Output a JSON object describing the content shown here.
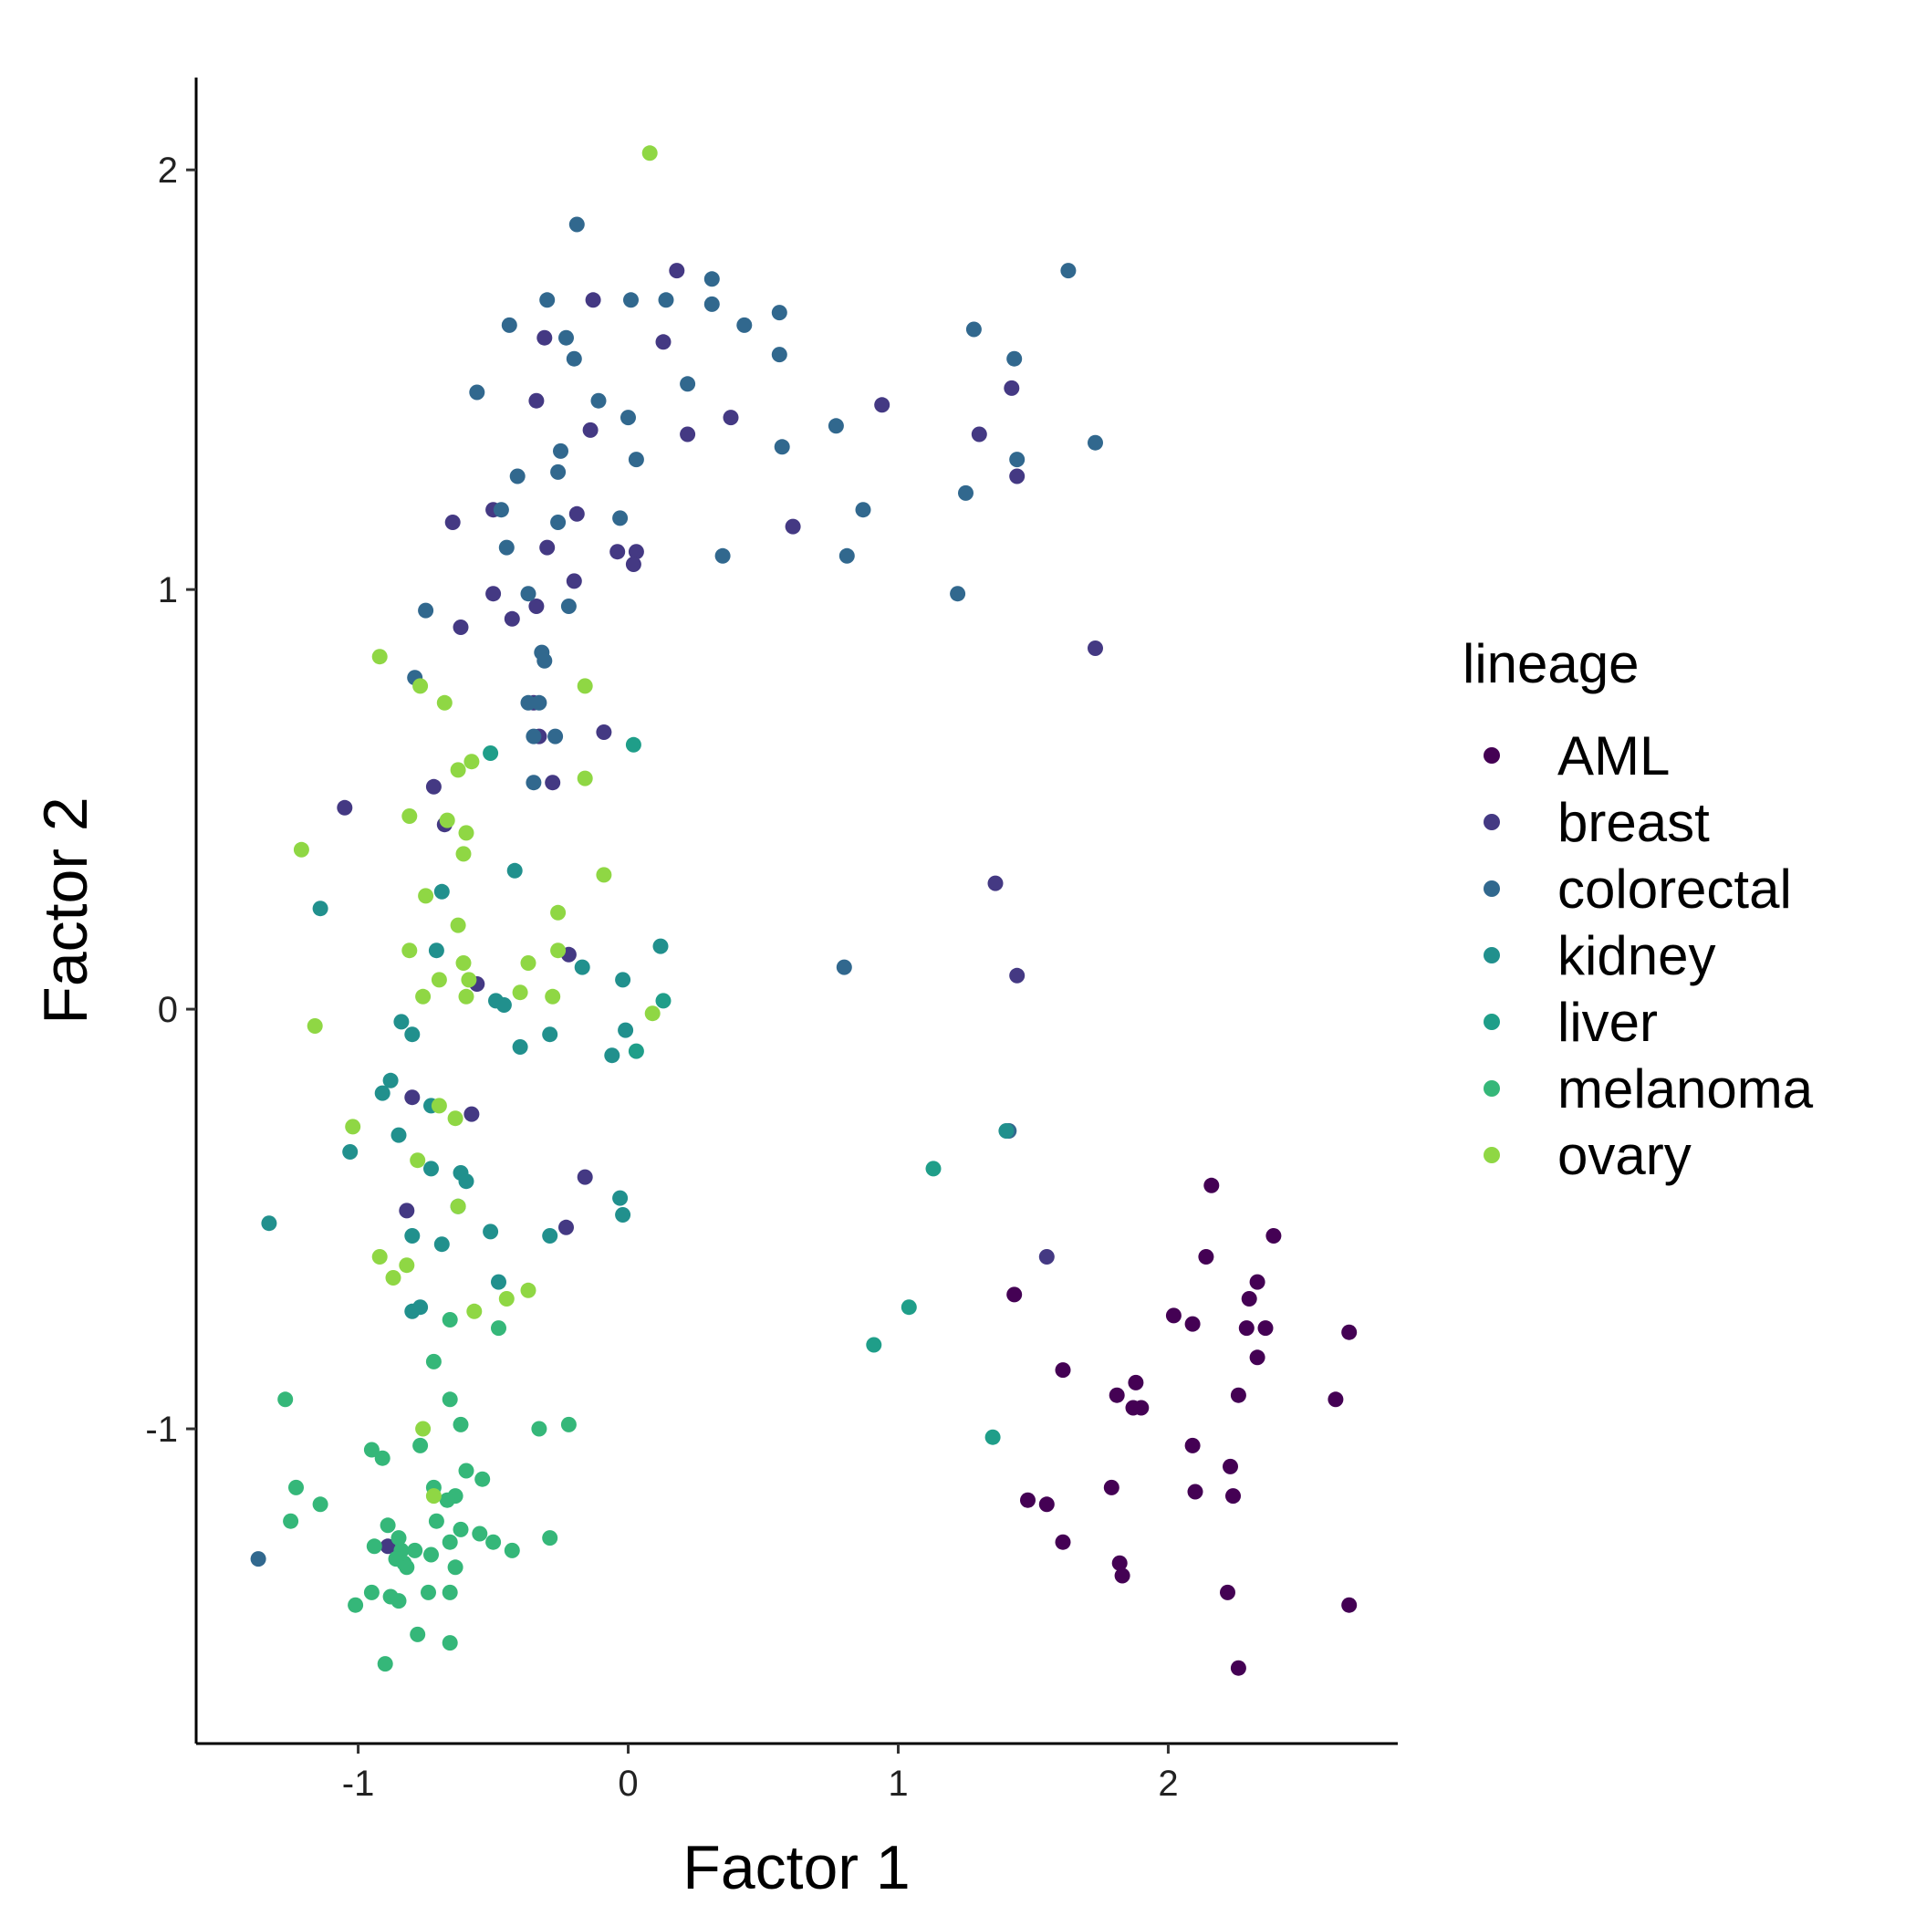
{
  "chart_data": {
    "type": "scatter",
    "xlabel": "Factor 1",
    "ylabel": "Factor 2",
    "xlim": [
      -1.6,
      2.85
    ],
    "ylim": [
      -1.75,
      2.22
    ],
    "x_ticks": [
      -1,
      0,
      1,
      2
    ],
    "y_ticks": [
      -1,
      0,
      1,
      2
    ],
    "x_tick_labels": [
      "-1",
      "0",
      "1",
      "2"
    ],
    "y_tick_labels": [
      "-1",
      "0",
      "1",
      "2"
    ],
    "grid": false,
    "legend": {
      "title": "lineage",
      "placement": "right"
    },
    "series": [
      {
        "name": "AML",
        "color": "#440154",
        "points": [
          [
            2.16,
            -0.42
          ],
          [
            2.39,
            -0.54
          ],
          [
            2.14,
            -0.59
          ],
          [
            2.33,
            -0.65
          ],
          [
            2.3,
            -0.69
          ],
          [
            2.02,
            -0.73
          ],
          [
            2.09,
            -0.75
          ],
          [
            2.29,
            -0.76
          ],
          [
            2.36,
            -0.76
          ],
          [
            2.67,
            -0.77
          ],
          [
            2.33,
            -0.83
          ],
          [
            1.61,
            -0.86
          ],
          [
            1.88,
            -0.89
          ],
          [
            1.81,
            -0.92
          ],
          [
            2.26,
            -0.92
          ],
          [
            1.87,
            -0.95
          ],
          [
            1.9,
            -0.95
          ],
          [
            2.62,
            -0.93
          ],
          [
            2.09,
            -1.04
          ],
          [
            2.23,
            -1.09
          ],
          [
            1.79,
            -1.14
          ],
          [
            2.1,
            -1.15
          ],
          [
            2.24,
            -1.16
          ],
          [
            1.48,
            -1.17
          ],
          [
            1.55,
            -1.18
          ],
          [
            1.61,
            -1.27
          ],
          [
            1.82,
            -1.32
          ],
          [
            1.83,
            -1.35
          ],
          [
            2.22,
            -1.39
          ],
          [
            2.67,
            -1.42
          ],
          [
            2.26,
            -1.57
          ],
          [
            1.43,
            -0.68
          ]
        ]
      },
      {
        "name": "breast",
        "color": "#443983",
        "points": [
          [
            0.18,
            1.76
          ],
          [
            -0.13,
            1.69
          ],
          [
            0.13,
            1.59
          ],
          [
            -0.31,
            1.6
          ],
          [
            -0.34,
            1.45
          ],
          [
            0.22,
            1.37
          ],
          [
            -0.14,
            1.38
          ],
          [
            0.38,
            1.41
          ],
          [
            0.94,
            1.44
          ],
          [
            1.42,
            1.48
          ],
          [
            1.3,
            1.37
          ],
          [
            1.44,
            1.27
          ],
          [
            -0.5,
            1.19
          ],
          [
            -0.19,
            1.18
          ],
          [
            -0.65,
            1.16
          ],
          [
            0.61,
            1.15
          ],
          [
            -0.3,
            1.1
          ],
          [
            -0.04,
            1.09
          ],
          [
            0.03,
            1.09
          ],
          [
            0.02,
            1.06
          ],
          [
            -0.2,
            1.02
          ],
          [
            -0.5,
            0.99
          ],
          [
            -0.34,
            0.96
          ],
          [
            -0.43,
            0.93
          ],
          [
            -0.62,
            0.91
          ],
          [
            1.73,
            0.86
          ],
          [
            -0.09,
            0.66
          ],
          [
            -0.33,
            0.65
          ],
          [
            -0.28,
            0.54
          ],
          [
            -0.72,
            0.53
          ],
          [
            -1.05,
            0.48
          ],
          [
            -0.68,
            0.44
          ],
          [
            1.36,
            0.3
          ],
          [
            -0.22,
            0.13
          ],
          [
            1.44,
            0.08
          ],
          [
            -0.56,
            0.06
          ],
          [
            -0.8,
            -0.21
          ],
          [
            -0.58,
            -0.25
          ],
          [
            -0.16,
            -0.4
          ],
          [
            -0.82,
            -0.48
          ],
          [
            -0.23,
            -0.52
          ],
          [
            1.55,
            -0.59
          ],
          [
            -0.89,
            -1.28
          ],
          [
            -0.35,
            0.73
          ]
        ]
      },
      {
        "name": "colorectal",
        "color": "#31688e",
        "points": [
          [
            -0.19,
            1.87
          ],
          [
            1.63,
            1.76
          ],
          [
            0.31,
            1.74
          ],
          [
            -0.3,
            1.69
          ],
          [
            0.01,
            1.69
          ],
          [
            0.14,
            1.69
          ],
          [
            0.31,
            1.68
          ],
          [
            0.56,
            1.66
          ],
          [
            -0.44,
            1.63
          ],
          [
            0.43,
            1.63
          ],
          [
            1.28,
            1.62
          ],
          [
            -0.23,
            1.6
          ],
          [
            -0.2,
            1.55
          ],
          [
            0.56,
            1.56
          ],
          [
            1.43,
            1.55
          ],
          [
            0.22,
            1.49
          ],
          [
            -0.56,
            1.47
          ],
          [
            -0.11,
            1.45
          ],
          [
            0.0,
            1.41
          ],
          [
            0.77,
            1.39
          ],
          [
            -0.25,
            1.33
          ],
          [
            0.57,
            1.34
          ],
          [
            1.73,
            1.35
          ],
          [
            0.03,
            1.31
          ],
          [
            1.44,
            1.31
          ],
          [
            -0.26,
            1.28
          ],
          [
            -0.41,
            1.27
          ],
          [
            1.25,
            1.23
          ],
          [
            -0.47,
            1.19
          ],
          [
            0.87,
            1.19
          ],
          [
            -0.03,
            1.17
          ],
          [
            -0.26,
            1.16
          ],
          [
            -0.45,
            1.1
          ],
          [
            0.35,
            1.08
          ],
          [
            0.81,
            1.08
          ],
          [
            1.22,
            0.99
          ],
          [
            -0.37,
            0.99
          ],
          [
            -0.75,
            0.95
          ],
          [
            -0.22,
            0.96
          ],
          [
            -0.32,
            0.85
          ],
          [
            -0.31,
            0.83
          ],
          [
            -0.79,
            0.79
          ],
          [
            -0.37,
            0.73
          ],
          [
            -0.33,
            0.73
          ],
          [
            -0.35,
            0.65
          ],
          [
            -0.27,
            0.65
          ],
          [
            -0.35,
            0.54
          ],
          [
            0.8,
            0.1
          ],
          [
            1.41,
            -0.29
          ],
          [
            -1.37,
            -1.31
          ]
        ]
      },
      {
        "name": "kidney",
        "color": "#21908d",
        "points": [
          [
            -1.14,
            0.24
          ],
          [
            -0.69,
            0.28
          ],
          [
            -0.42,
            0.33
          ],
          [
            -0.71,
            0.14
          ],
          [
            0.12,
            0.15
          ],
          [
            -0.17,
            0.1
          ],
          [
            -0.02,
            0.07
          ],
          [
            -0.49,
            0.02
          ],
          [
            -0.46,
            0.01
          ],
          [
            -0.84,
            -0.03
          ],
          [
            -0.8,
            -0.06
          ],
          [
            -0.29,
            -0.06
          ],
          [
            -0.01,
            -0.05
          ],
          [
            -0.4,
            -0.09
          ],
          [
            -0.06,
            -0.11
          ],
          [
            -0.88,
            -0.17
          ],
          [
            -0.91,
            -0.2
          ],
          [
            -0.73,
            -0.23
          ],
          [
            -0.85,
            -0.3
          ],
          [
            -1.03,
            -0.34
          ],
          [
            -0.73,
            -0.38
          ],
          [
            -0.62,
            -0.39
          ],
          [
            -0.6,
            -0.41
          ],
          [
            -0.63,
            -0.47
          ],
          [
            -0.03,
            -0.45
          ],
          [
            -0.02,
            -0.49
          ],
          [
            -1.33,
            -0.51
          ],
          [
            -0.51,
            -0.53
          ],
          [
            -0.8,
            -0.54
          ],
          [
            -0.29,
            -0.54
          ],
          [
            -0.69,
            -0.56
          ],
          [
            -0.48,
            -0.65
          ],
          [
            -0.77,
            -0.71
          ],
          [
            -0.8,
            -0.72
          ],
          [
            1.4,
            -0.29
          ]
        ]
      },
      {
        "name": "liver",
        "color": "#1f9e89",
        "points": [
          [
            0.02,
            0.63
          ],
          [
            -0.51,
            0.61
          ],
          [
            0.13,
            0.02
          ],
          [
            1.13,
            -0.38
          ],
          [
            1.04,
            -0.71
          ],
          [
            0.91,
            -0.8
          ],
          [
            1.35,
            -1.02
          ],
          [
            0.03,
            -0.1
          ]
        ]
      },
      {
        "name": "melanoma",
        "color": "#35b779",
        "points": [
          [
            -0.72,
            -0.84
          ],
          [
            -1.27,
            -0.93
          ],
          [
            -0.66,
            -0.93
          ],
          [
            -0.91,
            -1.07
          ],
          [
            -0.62,
            -0.99
          ],
          [
            -0.33,
            -1.0
          ],
          [
            -0.22,
            -0.99
          ],
          [
            -0.95,
            -1.05
          ],
          [
            -0.77,
            -1.04
          ],
          [
            -0.6,
            -1.1
          ],
          [
            -0.54,
            -1.12
          ],
          [
            -1.23,
            -1.14
          ],
          [
            -0.72,
            -1.14
          ],
          [
            -0.64,
            -1.16
          ],
          [
            -0.67,
            -1.17
          ],
          [
            -1.14,
            -1.18
          ],
          [
            -1.25,
            -1.22
          ],
          [
            -0.89,
            -1.23
          ],
          [
            -0.71,
            -1.22
          ],
          [
            -0.62,
            -1.24
          ],
          [
            -0.55,
            -1.25
          ],
          [
            -0.85,
            -1.26
          ],
          [
            -0.66,
            -1.27
          ],
          [
            -0.5,
            -1.27
          ],
          [
            -0.29,
            -1.26
          ],
          [
            -0.94,
            -1.28
          ],
          [
            -0.84,
            -1.29
          ],
          [
            -0.79,
            -1.29
          ],
          [
            -0.86,
            -1.31
          ],
          [
            -0.83,
            -1.32
          ],
          [
            -0.73,
            -1.3
          ],
          [
            -0.43,
            -1.29
          ],
          [
            -0.82,
            -1.33
          ],
          [
            -0.64,
            -1.33
          ],
          [
            -0.95,
            -1.39
          ],
          [
            -1.01,
            -1.42
          ],
          [
            -0.88,
            -1.4
          ],
          [
            -0.85,
            -1.41
          ],
          [
            -0.74,
            -1.39
          ],
          [
            -0.66,
            -1.39
          ],
          [
            -0.78,
            -1.49
          ],
          [
            -0.66,
            -1.51
          ],
          [
            -0.9,
            -1.56
          ],
          [
            -0.48,
            -0.76
          ],
          [
            -0.66,
            -0.74
          ]
        ]
      },
      {
        "name": "ovary",
        "color": "#8fd744",
        "points": [
          [
            0.08,
            2.04
          ],
          [
            -0.92,
            0.84
          ],
          [
            -0.77,
            0.77
          ],
          [
            -0.16,
            0.77
          ],
          [
            -0.68,
            0.73
          ],
          [
            -0.58,
            0.59
          ],
          [
            -0.63,
            0.57
          ],
          [
            -0.16,
            0.55
          ],
          [
            -0.81,
            0.46
          ],
          [
            -0.67,
            0.45
          ],
          [
            -0.6,
            0.42
          ],
          [
            -1.21,
            0.38
          ],
          [
            -0.61,
            0.37
          ],
          [
            -0.09,
            0.32
          ],
          [
            -0.75,
            0.27
          ],
          [
            -0.26,
            0.23
          ],
          [
            -0.63,
            0.2
          ],
          [
            -0.81,
            0.14
          ],
          [
            -0.26,
            0.14
          ],
          [
            -0.61,
            0.11
          ],
          [
            -0.37,
            0.11
          ],
          [
            -0.59,
            0.07
          ],
          [
            -0.7,
            0.07
          ],
          [
            -0.76,
            0.03
          ],
          [
            -0.6,
            0.03
          ],
          [
            -0.4,
            0.04
          ],
          [
            -0.28,
            0.03
          ],
          [
            0.09,
            -0.01
          ],
          [
            -1.16,
            -0.04
          ],
          [
            -0.7,
            -0.23
          ],
          [
            -0.64,
            -0.26
          ],
          [
            -1.02,
            -0.28
          ],
          [
            -0.78,
            -0.36
          ],
          [
            -0.63,
            -0.47
          ],
          [
            -0.92,
            -0.59
          ],
          [
            -0.82,
            -0.61
          ],
          [
            -0.87,
            -0.64
          ],
          [
            -0.37,
            -0.67
          ],
          [
            -0.45,
            -0.69
          ],
          [
            -0.57,
            -0.72
          ],
          [
            -0.76,
            -1.0
          ],
          [
            -0.72,
            -1.16
          ]
        ]
      }
    ]
  }
}
